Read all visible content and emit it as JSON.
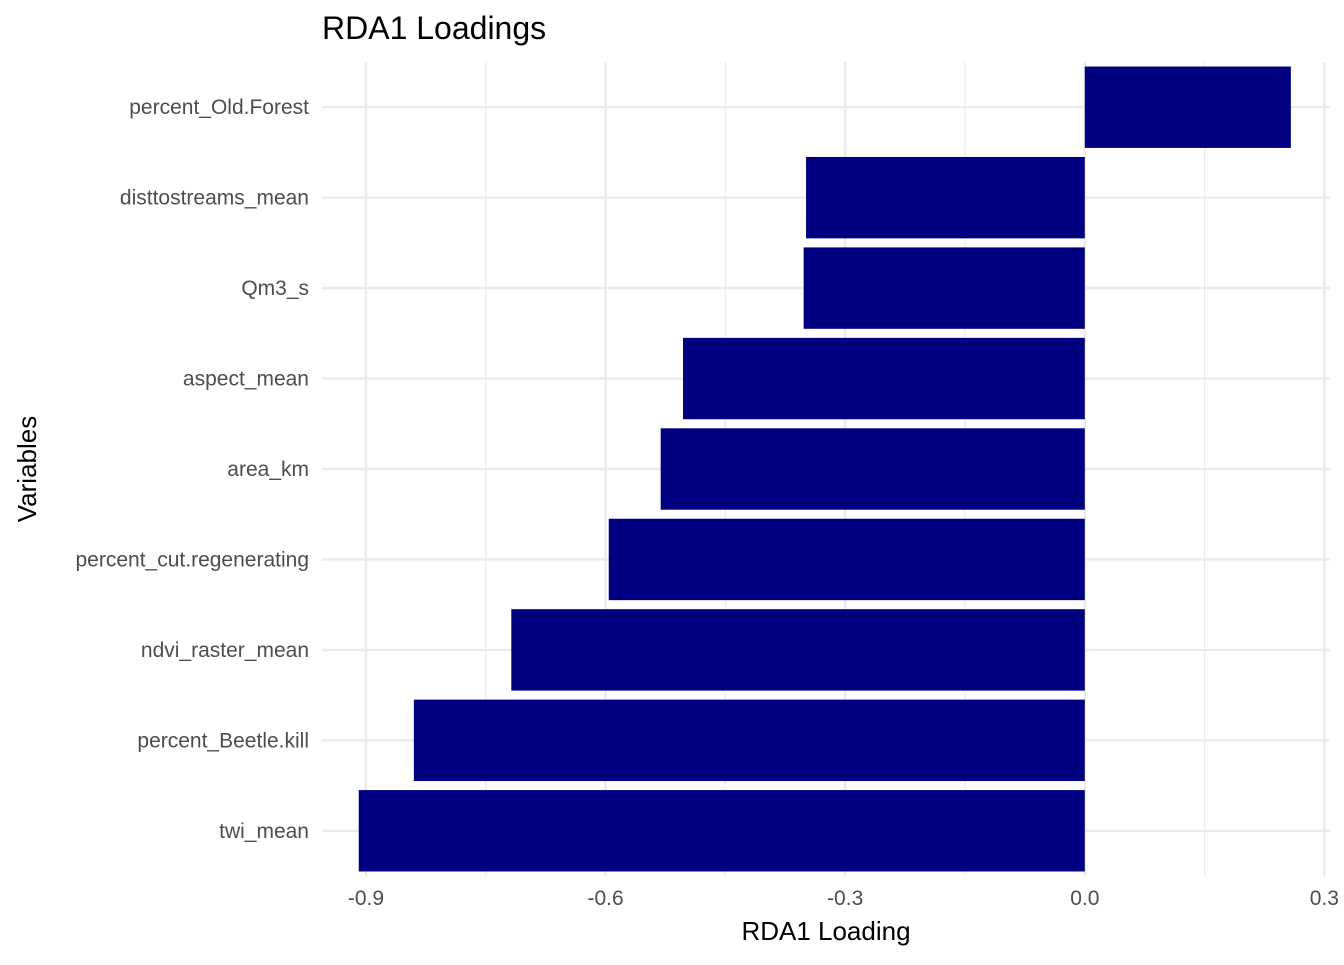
{
  "chart_data": {
    "type": "bar",
    "orientation": "horizontal",
    "title": "RDA1 Loadings",
    "xlabel": "RDA1 Loading",
    "ylabel": "Variables",
    "categories": [
      "percent_Old.Forest",
      "disttostreams_mean",
      "Qm3_s",
      "aspect_mean",
      "area_km",
      "percent_cut.regenerating",
      "ndvi_raster_mean",
      "percent_Beetle.kill",
      "twi_mean"
    ],
    "values": [
      0.258,
      -0.349,
      -0.352,
      -0.503,
      -0.531,
      -0.596,
      -0.718,
      -0.84,
      -0.909
    ],
    "xlim": [
      -0.955,
      0.307
    ],
    "x_ticks": [
      -0.9,
      -0.6,
      -0.3,
      0.0,
      0.3
    ],
    "x_tick_labels": [
      "-0.9",
      "-0.6",
      "-0.3",
      "0.0",
      "0.3"
    ],
    "grid": true,
    "bar_color": "#000080",
    "grid_color": "#ebebeb"
  }
}
